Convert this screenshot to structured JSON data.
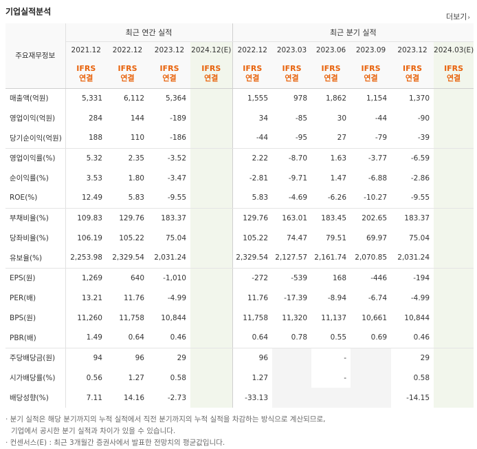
{
  "section_title": "기업실적분석",
  "more_link": "더보기",
  "row_header_label": "주요재무정보",
  "group_headers": {
    "annual": "최근 연간 실적",
    "quarterly": "최근 분기 실적"
  },
  "annual_periods": [
    "2021.12",
    "2022.12",
    "2023.12",
    "2024.12(E)"
  ],
  "quarterly_periods": [
    "2022.12",
    "2023.03",
    "2023.06",
    "2023.09",
    "2023.12",
    "2024.03(E)"
  ],
  "ifrs_top": "IFRS",
  "ifrs_bottom": "연결",
  "estimate_column_indices": [
    3,
    9
  ],
  "rows": [
    {
      "label": "매출액(억원)",
      "values": [
        "5,331",
        "6,112",
        "5,364",
        "",
        "1,555",
        "978",
        "1,862",
        "1,154",
        "1,370",
        ""
      ]
    },
    {
      "label": "영업이익(억원)",
      "values": [
        "284",
        "144",
        "-189",
        "",
        "34",
        "-85",
        "30",
        "-44",
        "-90",
        ""
      ]
    },
    {
      "label": "당기순이익(억원)",
      "values": [
        "188",
        "110",
        "-186",
        "",
        "-44",
        "-95",
        "27",
        "-79",
        "-39",
        ""
      ]
    },
    {
      "label": "영업이익률(%)",
      "values": [
        "5.32",
        "2.35",
        "-3.52",
        "",
        "2.22",
        "-8.70",
        "1.63",
        "-3.77",
        "-6.59",
        ""
      ]
    },
    {
      "label": "순이익률(%)",
      "values": [
        "3.53",
        "1.80",
        "-3.47",
        "",
        "-2.81",
        "-9.71",
        "1.47",
        "-6.88",
        "-2.86",
        ""
      ]
    },
    {
      "label": "ROE(%)",
      "values": [
        "12.49",
        "5.83",
        "-9.55",
        "",
        "5.83",
        "-4.69",
        "-6.26",
        "-10.27",
        "-9.55",
        ""
      ]
    },
    {
      "label": "부채비율(%)",
      "values": [
        "109.83",
        "129.76",
        "183.37",
        "",
        "129.76",
        "163.01",
        "183.45",
        "202.65",
        "183.37",
        ""
      ]
    },
    {
      "label": "당좌비율(%)",
      "values": [
        "106.19",
        "105.22",
        "75.04",
        "",
        "105.22",
        "74.47",
        "79.51",
        "69.97",
        "75.04",
        ""
      ]
    },
    {
      "label": "유보율(%)",
      "values": [
        "2,253.98",
        "2,329.54",
        "2,031.24",
        "",
        "2,329.54",
        "2,127.57",
        "2,161.74",
        "2,070.85",
        "2,031.24",
        ""
      ]
    },
    {
      "label": "EPS(원)",
      "values": [
        "1,269",
        "640",
        "-1,010",
        "",
        "-272",
        "-539",
        "168",
        "-446",
        "-194",
        ""
      ]
    },
    {
      "label": "PER(배)",
      "values": [
        "13.21",
        "11.76",
        "-4.99",
        "",
        "11.76",
        "-17.39",
        "-8.94",
        "-6.74",
        "-4.99",
        ""
      ]
    },
    {
      "label": "BPS(원)",
      "values": [
        "11,260",
        "11,758",
        "10,844",
        "",
        "11,758",
        "11,320",
        "11,137",
        "10,661",
        "10,844",
        ""
      ]
    },
    {
      "label": "PBR(배)",
      "values": [
        "1.49",
        "0.64",
        "0.46",
        "",
        "0.64",
        "0.78",
        "0.55",
        "0.69",
        "0.46",
        ""
      ]
    },
    {
      "label": "주당배당금(원)",
      "values": [
        "94",
        "96",
        "29",
        "",
        "96",
        "",
        "-",
        "",
        "29",
        ""
      ]
    },
    {
      "label": "시가배당률(%)",
      "values": [
        "0.56",
        "1.27",
        "0.58",
        "",
        "1.27",
        "",
        "-",
        "",
        "0.58",
        ""
      ]
    },
    {
      "label": "배당성향(%)",
      "values": [
        "7.11",
        "14.16",
        "-2.73",
        "",
        "-33.13",
        "",
        "",
        "",
        "-14.15",
        ""
      ]
    }
  ],
  "shaded_blank_cells": [
    [
      13,
      5
    ],
    [
      13,
      7
    ],
    [
      14,
      5
    ],
    [
      14,
      7
    ],
    [
      15,
      5
    ],
    [
      15,
      6
    ],
    [
      15,
      7
    ]
  ],
  "group_end_rows": [
    2,
    5,
    8,
    12
  ],
  "notes": [
    "· 분기 실적은 해당 분기까지의 누적 실적에서 직전 분기까지의 누적 실적을 차감하는 방식으로 계산되므로,",
    "기업에서 공시한 분기 실적과 차이가 있을 수 있습니다.",
    "· 컨센서스(E) : 최근 3개월간 증권사에서 발표한 전망치의 평균값입니다."
  ],
  "colors": {
    "negative": "#ea1f1f",
    "ifrs": "#e8620b",
    "estimate_bg": "#f2f6ec"
  }
}
